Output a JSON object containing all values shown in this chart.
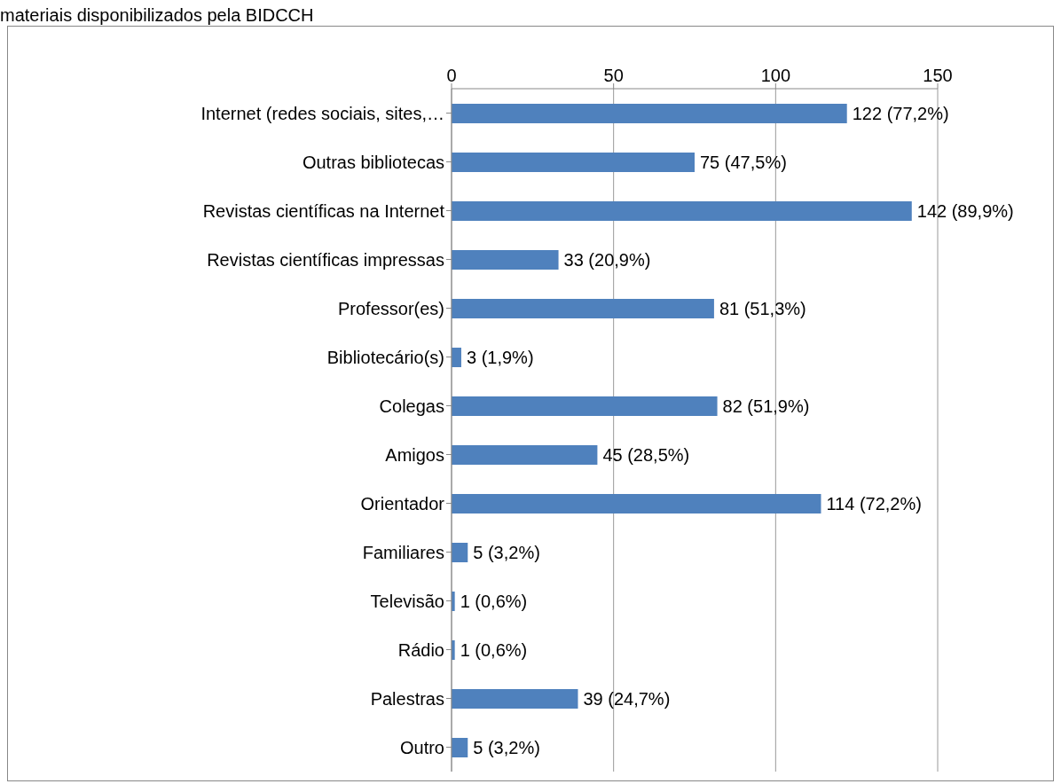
{
  "chart_data": {
    "type": "bar",
    "orientation": "horizontal",
    "title": "materiais disponibilizados pela BIDCCH",
    "categories": [
      "Internet (redes sociais, sites,…",
      "Outras bibliotecas",
      "Revistas científicas na Internet",
      "Revistas científicas impressas",
      "Professor(es)",
      "Bibliotecário(s)",
      "Colegas",
      "Amigos",
      "Orientador",
      "Familiares",
      "Televisão",
      "Rádio",
      "Palestras",
      "Outro"
    ],
    "values": [
      122,
      75,
      142,
      33,
      81,
      3,
      82,
      45,
      114,
      5,
      1,
      1,
      39,
      5
    ],
    "value_labels": [
      "122 (77,2%)",
      "75 (47,5%)",
      "142 (89,9%)",
      "33 (20,9%)",
      "81 (51,3%)",
      "3 (1,9%)",
      "82 (51,9%)",
      "45 (28,5%)",
      "114 (72,2%)",
      "5 (3,2%)",
      "1 (0,6%)",
      "1 (0,6%)",
      "39 (24,7%)",
      "5 (3,2%)"
    ],
    "color": "#4f81bd",
    "xlim": [
      0,
      150
    ],
    "xticks": [
      0,
      50,
      100,
      150
    ],
    "grid": "x"
  }
}
